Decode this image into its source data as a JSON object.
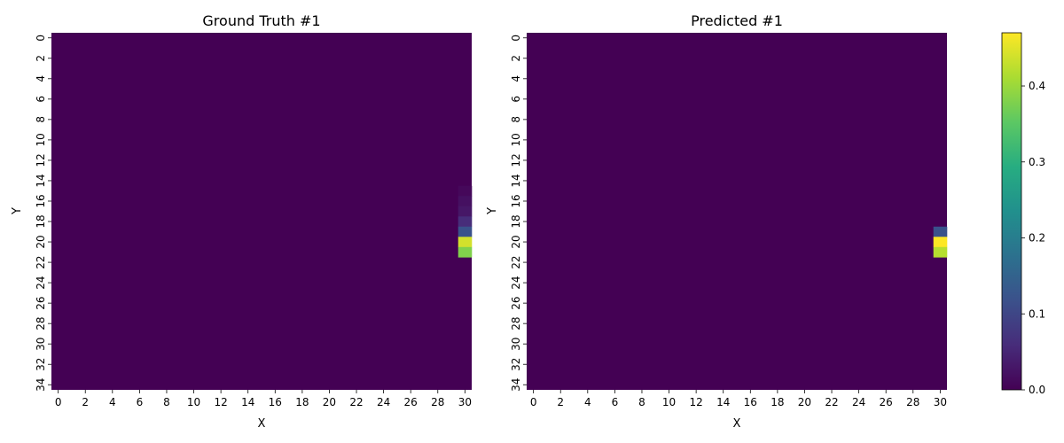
{
  "chart_data": [
    {
      "type": "heatmap",
      "title": "Ground Truth #1",
      "xlabel": "X",
      "ylabel": "Y",
      "x_range": [
        0,
        30
      ],
      "y_range": [
        0,
        34
      ],
      "x_tick_labels": [
        "0",
        "2",
        "4",
        "6",
        "8",
        "10",
        "12",
        "14",
        "16",
        "18",
        "20",
        "22",
        "24",
        "26",
        "28",
        "30"
      ],
      "y_tick_labels": [
        "0",
        "2",
        "4",
        "6",
        "8",
        "10",
        "12",
        "14",
        "16",
        "18",
        "20",
        "22",
        "24",
        "26",
        "28",
        "30",
        "32",
        "34"
      ],
      "background_value": 0.0,
      "nonzero_cells": [
        {
          "x": 30,
          "y": 15,
          "value": 0.01
        },
        {
          "x": 30,
          "y": 16,
          "value": 0.02
        },
        {
          "x": 30,
          "y": 17,
          "value": 0.03
        },
        {
          "x": 30,
          "y": 18,
          "value": 0.06
        },
        {
          "x": 30,
          "y": 19,
          "value": 0.12
        },
        {
          "x": 30,
          "y": 20,
          "value": 0.44
        },
        {
          "x": 30,
          "y": 21,
          "value": 0.38
        }
      ]
    },
    {
      "type": "heatmap",
      "title": "Predicted #1",
      "xlabel": "X",
      "ylabel": "Y",
      "x_range": [
        0,
        30
      ],
      "y_range": [
        0,
        34
      ],
      "x_tick_labels": [
        "0",
        "2",
        "4",
        "6",
        "8",
        "10",
        "12",
        "14",
        "16",
        "18",
        "20",
        "22",
        "24",
        "26",
        "28",
        "30"
      ],
      "y_tick_labels": [
        "0",
        "2",
        "4",
        "6",
        "8",
        "10",
        "12",
        "14",
        "16",
        "18",
        "20",
        "22",
        "24",
        "26",
        "28",
        "30",
        "32",
        "34"
      ],
      "background_value": 0.0,
      "nonzero_cells": [
        {
          "x": 30,
          "y": 19,
          "value": 0.12
        },
        {
          "x": 30,
          "y": 20,
          "value": 0.47
        },
        {
          "x": 30,
          "y": 21,
          "value": 0.42
        }
      ]
    }
  ],
  "colorbar": {
    "colormap": "viridis",
    "range": [
      0.0,
      0.47
    ],
    "tick_values": [
      0.0,
      0.1,
      0.2,
      0.3,
      0.4
    ],
    "tick_labels": [
      "0.0",
      "0.1",
      "0.2",
      "0.3",
      "0.4"
    ]
  }
}
